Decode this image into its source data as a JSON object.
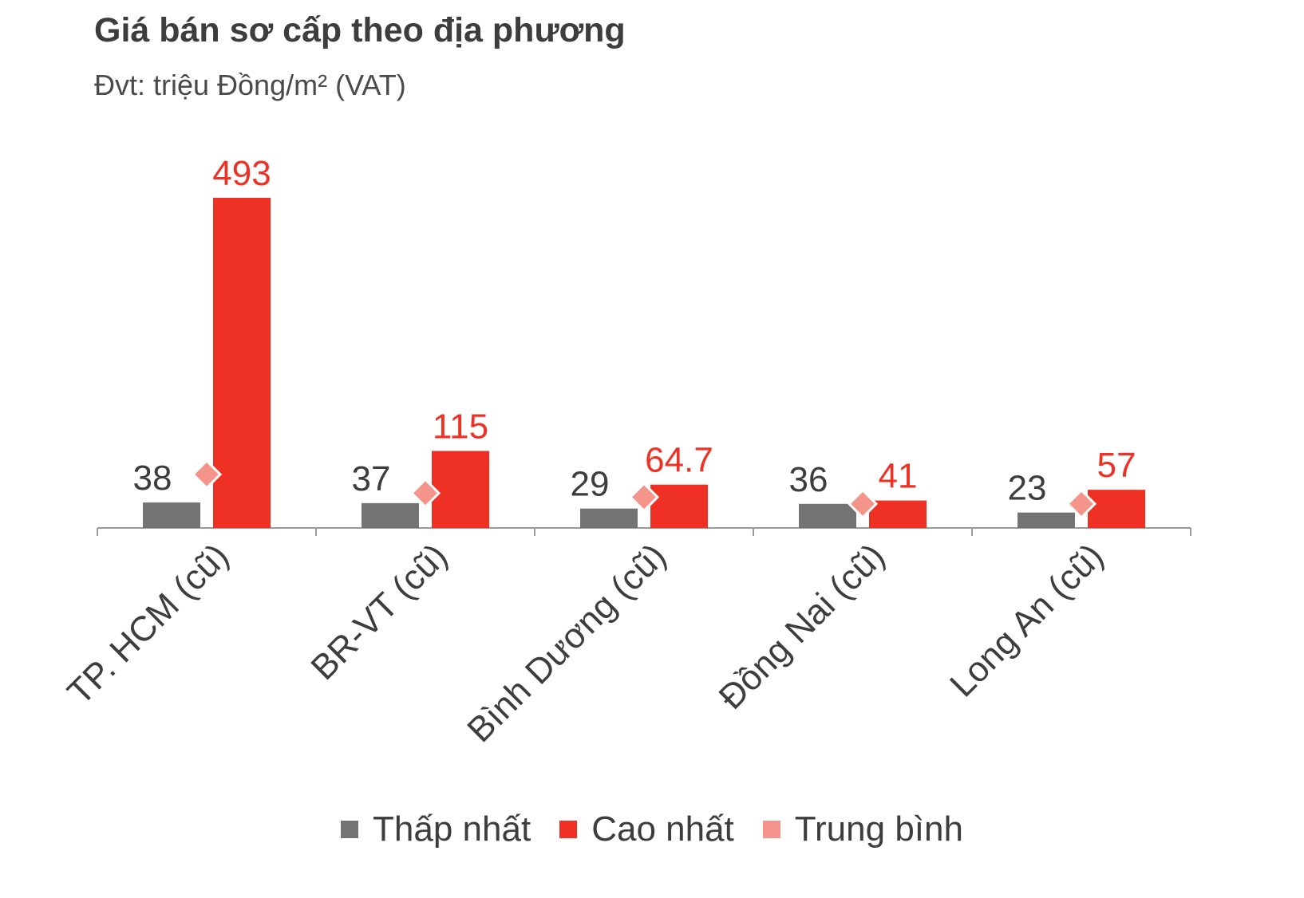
{
  "title": "Giá bán sơ cấp theo địa phương",
  "subtitle": "Đvt: triệu Đồng/m² (VAT)",
  "colors": {
    "low": "#737373",
    "high": "#ee3124",
    "avg": "#f5948a",
    "axis": "#9a9a9a",
    "value_low": "#3d3d3d",
    "value_high": "#ee3124"
  },
  "chart_data": {
    "type": "bar",
    "categories": [
      "TP. HCM (cũ)",
      "BR-VT (cũ)",
      "Bình Dương (cũ)",
      "Đồng Nai (cũ)",
      "Long An (cũ)"
    ],
    "series": [
      {
        "name": "Thấp nhất",
        "type": "bar",
        "values": [
          38,
          37,
          29,
          36,
          23
        ],
        "labels": [
          "38",
          "37",
          "29",
          "36",
          "23"
        ]
      },
      {
        "name": "Cao nhất",
        "type": "bar",
        "values": [
          493,
          115,
          64.7,
          41,
          57
        ],
        "labels": [
          "493",
          "115",
          "64.7",
          "41",
          "57"
        ]
      },
      {
        "name": "Trung bình",
        "type": "marker",
        "values": [
          80,
          52,
          46,
          36,
          36
        ]
      }
    ],
    "ylim": [
      0,
      500
    ],
    "grid": false,
    "legend": "bottom"
  }
}
